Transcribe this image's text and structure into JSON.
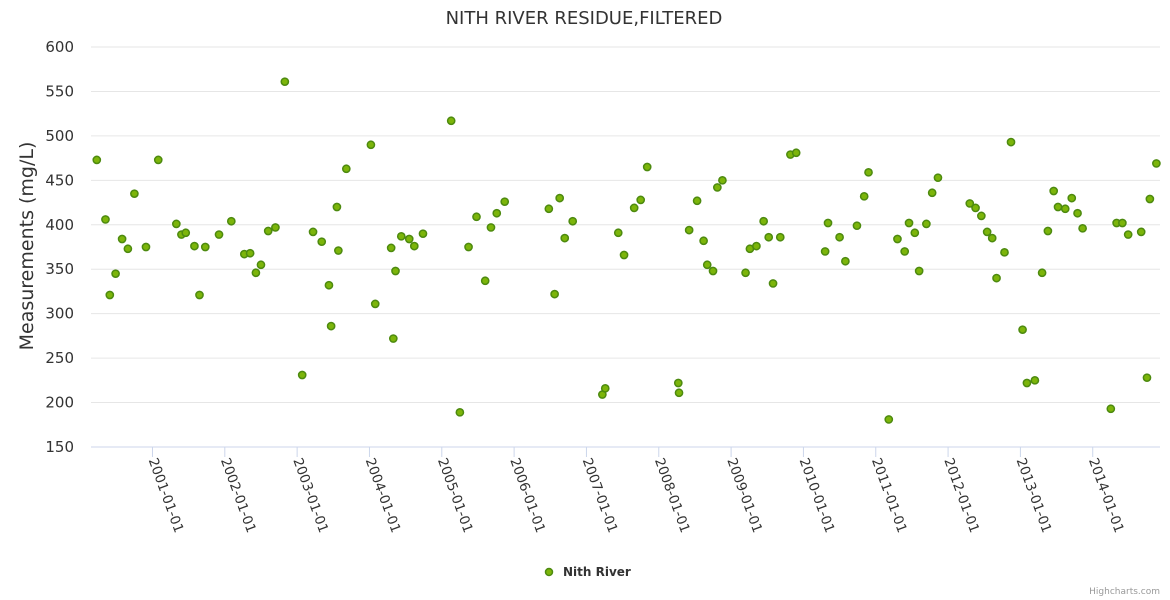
{
  "credits": "Highcharts.com",
  "colors": {
    "series": "#7cb50a",
    "series_stroke": "#4d8a0f"
  },
  "chart_data": {
    "type": "scatter",
    "title": "NITH RIVER RESIDUE,FILTERED",
    "ylabel": "Measurements (mg/L)",
    "xlabel": "",
    "ylim": [
      150,
      600
    ],
    "yticks": [
      150,
      200,
      250,
      300,
      350,
      400,
      450,
      500,
      550,
      600
    ],
    "xlim": [
      2000.15,
      2014.93
    ],
    "xtick_labels": [
      "2001-01-01",
      "2002-01-01",
      "2003-01-01",
      "2004-01-01",
      "2005-01-01",
      "2006-01-01",
      "2007-01-01",
      "2008-01-01",
      "2009-01-01",
      "2010-01-01",
      "2011-01-01",
      "2012-01-01",
      "2013-01-01",
      "2014-01-01"
    ],
    "legend": {
      "position": "bottom-center"
    },
    "series": [
      {
        "name": "Nith River",
        "points": [
          [
            2000.23,
            473
          ],
          [
            2000.35,
            406
          ],
          [
            2000.41,
            321
          ],
          [
            2000.49,
            345
          ],
          [
            2000.58,
            384
          ],
          [
            2000.66,
            373
          ],
          [
            2000.75,
            435
          ],
          [
            2000.91,
            375
          ],
          [
            2001.08,
            473
          ],
          [
            2001.33,
            401
          ],
          [
            2001.4,
            389
          ],
          [
            2001.46,
            391
          ],
          [
            2001.58,
            376
          ],
          [
            2001.65,
            321
          ],
          [
            2001.73,
            375
          ],
          [
            2001.92,
            389
          ],
          [
            2002.09,
            404
          ],
          [
            2002.27,
            367
          ],
          [
            2002.35,
            368
          ],
          [
            2002.43,
            346
          ],
          [
            2002.5,
            355
          ],
          [
            2002.6,
            393
          ],
          [
            2002.7,
            397
          ],
          [
            2002.83,
            561
          ],
          [
            2003.07,
            231
          ],
          [
            2003.22,
            392
          ],
          [
            2003.34,
            381
          ],
          [
            2003.44,
            332
          ],
          [
            2003.47,
            286
          ],
          [
            2003.55,
            420
          ],
          [
            2003.57,
            371
          ],
          [
            2003.68,
            463
          ],
          [
            2004.02,
            490
          ],
          [
            2004.08,
            311
          ],
          [
            2004.3,
            374
          ],
          [
            2004.33,
            272
          ],
          [
            2004.36,
            348
          ],
          [
            2004.44,
            387
          ],
          [
            2004.55,
            384
          ],
          [
            2004.62,
            376
          ],
          [
            2004.74,
            390
          ],
          [
            2005.13,
            517
          ],
          [
            2005.25,
            189
          ],
          [
            2005.37,
            375
          ],
          [
            2005.48,
            409
          ],
          [
            2005.6,
            337
          ],
          [
            2005.68,
            397
          ],
          [
            2005.76,
            413
          ],
          [
            2005.87,
            426
          ],
          [
            2006.48,
            418
          ],
          [
            2006.56,
            322
          ],
          [
            2006.63,
            430
          ],
          [
            2006.7,
            385
          ],
          [
            2006.81,
            404
          ],
          [
            2007.22,
            209
          ],
          [
            2007.26,
            216
          ],
          [
            2007.44,
            391
          ],
          [
            2007.52,
            366
          ],
          [
            2007.66,
            419
          ],
          [
            2007.75,
            428
          ],
          [
            2007.84,
            465
          ],
          [
            2008.27,
            222
          ],
          [
            2008.28,
            211
          ],
          [
            2008.42,
            394
          ],
          [
            2008.53,
            427
          ],
          [
            2008.62,
            382
          ],
          [
            2008.67,
            355
          ],
          [
            2008.75,
            348
          ],
          [
            2008.81,
            442
          ],
          [
            2008.88,
            450
          ],
          [
            2009.2,
            346
          ],
          [
            2009.26,
            373
          ],
          [
            2009.35,
            376
          ],
          [
            2009.45,
            404
          ],
          [
            2009.52,
            386
          ],
          [
            2009.58,
            334
          ],
          [
            2009.68,
            386
          ],
          [
            2009.82,
            479
          ],
          [
            2009.9,
            481
          ],
          [
            2010.3,
            370
          ],
          [
            2010.34,
            402
          ],
          [
            2010.5,
            386
          ],
          [
            2010.58,
            359
          ],
          [
            2010.74,
            399
          ],
          [
            2010.84,
            432
          ],
          [
            2010.9,
            459
          ],
          [
            2011.18,
            181
          ],
          [
            2011.3,
            384
          ],
          [
            2011.4,
            370
          ],
          [
            2011.46,
            402
          ],
          [
            2011.54,
            391
          ],
          [
            2011.6,
            348
          ],
          [
            2011.7,
            401
          ],
          [
            2011.78,
            436
          ],
          [
            2011.86,
            453
          ],
          [
            2012.3,
            424
          ],
          [
            2012.38,
            419
          ],
          [
            2012.46,
            410
          ],
          [
            2012.54,
            392
          ],
          [
            2012.61,
            385
          ],
          [
            2012.67,
            340
          ],
          [
            2012.78,
            369
          ],
          [
            2012.87,
            493
          ],
          [
            2013.03,
            282
          ],
          [
            2013.09,
            222
          ],
          [
            2013.2,
            225
          ],
          [
            2013.3,
            346
          ],
          [
            2013.38,
            393
          ],
          [
            2013.46,
            438
          ],
          [
            2013.52,
            420
          ],
          [
            2013.62,
            418
          ],
          [
            2013.71,
            430
          ],
          [
            2013.79,
            413
          ],
          [
            2013.86,
            396
          ],
          [
            2014.25,
            193
          ],
          [
            2014.33,
            402
          ],
          [
            2014.41,
            402
          ],
          [
            2014.49,
            389
          ],
          [
            2014.67,
            392
          ],
          [
            2014.75,
            228
          ],
          [
            2014.79,
            429
          ],
          [
            2014.88,
            469
          ]
        ]
      }
    ]
  }
}
